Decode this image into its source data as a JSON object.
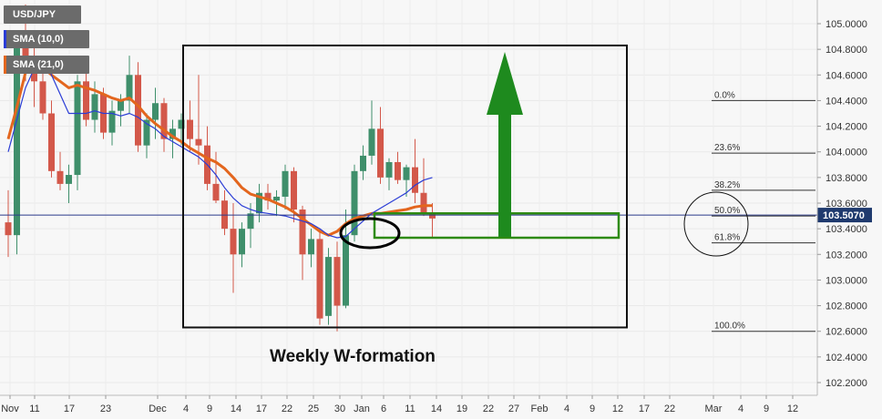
{
  "legend": {
    "symbol": "USD/JPY",
    "sma_fast": "SMA (10,0)",
    "sma_slow": "SMA (21,0)"
  },
  "colors": {
    "bull": "#3f8f6b",
    "bear": "#d3584a",
    "sma_fast": "#2b3dd6",
    "sma_slow": "#e3661e",
    "price_line": "#2b3a8a",
    "price_badge": "#1f3a6e",
    "range_box": "#111111",
    "zone": "#2e8b12",
    "arrow": "#1e8a1e"
  },
  "chart_data": {
    "type": "candlestick",
    "y_ticks": [
      "105.0000",
      "104.8000",
      "104.6000",
      "104.4000",
      "104.2000",
      "104.0000",
      "103.8000",
      "103.6000",
      "103.4000",
      "103.2000",
      "103.0000",
      "102.8000",
      "102.6000",
      "102.4000",
      "102.2000"
    ],
    "ylim": [
      102.08,
      105.12
    ],
    "x_ticks": [
      "Nov",
      "11",
      "17",
      "23",
      "Dec",
      "4",
      "9",
      "14",
      "17",
      "22",
      "25",
      "30",
      "Jan",
      "6",
      "11",
      "14",
      "19",
      "22",
      "27",
      "Feb",
      "4",
      "9",
      "12",
      "17",
      "22",
      "Mar",
      "4",
      "9",
      "12"
    ],
    "current_price": "103.5070",
    "candles": [
      [
        103.45,
        103.7,
        103.18,
        103.35
      ],
      [
        103.35,
        104.95,
        103.2,
        104.9
      ],
      [
        104.9,
        105.15,
        104.55,
        104.75
      ],
      [
        104.75,
        104.95,
        104.35,
        104.55
      ],
      [
        104.55,
        104.7,
        104.25,
        104.3
      ],
      [
        104.3,
        104.4,
        103.8,
        103.85
      ],
      [
        103.85,
        104.0,
        103.7,
        103.75
      ],
      [
        103.75,
        103.9,
        103.6,
        103.82
      ],
      [
        103.82,
        104.6,
        103.7,
        104.55
      ],
      [
        104.55,
        104.65,
        104.2,
        104.25
      ],
      [
        104.25,
        104.55,
        104.15,
        104.45
      ],
      [
        104.45,
        104.5,
        104.1,
        104.15
      ],
      [
        104.15,
        104.4,
        104.05,
        104.32
      ],
      [
        104.32,
        104.45,
        104.2,
        104.4
      ],
      [
        104.4,
        104.75,
        104.3,
        104.6
      ],
      [
        104.6,
        104.7,
        104.0,
        104.05
      ],
      [
        104.05,
        104.3,
        103.95,
        104.25
      ],
      [
        104.25,
        104.5,
        104.1,
        104.38
      ],
      [
        104.38,
        104.42,
        104.0,
        104.1
      ],
      [
        104.1,
        104.25,
        103.95,
        104.18
      ],
      [
        104.18,
        104.3,
        104.05,
        104.25
      ],
      [
        104.25,
        104.4,
        104.0,
        104.1
      ],
      [
        104.1,
        104.6,
        103.9,
        104.05
      ],
      [
        104.05,
        104.2,
        103.7,
        103.75
      ],
      [
        103.75,
        104.0,
        103.6,
        103.62
      ],
      [
        103.62,
        103.7,
        103.35,
        103.4
      ],
      [
        103.4,
        103.6,
        102.9,
        103.2
      ],
      [
        103.2,
        103.45,
        103.1,
        103.4
      ],
      [
        103.4,
        103.6,
        103.25,
        103.52
      ],
      [
        103.52,
        103.75,
        103.45,
        103.68
      ],
      [
        103.68,
        103.75,
        103.55,
        103.62
      ],
      [
        103.62,
        103.7,
        103.5,
        103.65
      ],
      [
        103.65,
        103.9,
        103.55,
        103.85
      ],
      [
        103.85,
        103.88,
        103.45,
        103.55
      ],
      [
        103.55,
        103.58,
        103.0,
        103.2
      ],
      [
        103.2,
        103.4,
        103.1,
        103.32
      ],
      [
        103.32,
        103.4,
        102.65,
        102.7
      ],
      [
        102.72,
        103.25,
        102.65,
        103.18
      ],
      [
        103.18,
        103.3,
        102.6,
        102.8
      ],
      [
        102.8,
        103.55,
        102.78,
        103.35
      ],
      [
        103.35,
        103.9,
        103.3,
        103.85
      ],
      [
        103.85,
        104.05,
        103.78,
        103.97
      ],
      [
        103.97,
        104.4,
        103.9,
        104.18
      ],
      [
        104.18,
        104.35,
        103.75,
        103.8
      ],
      [
        103.8,
        103.95,
        103.7,
        103.92
      ],
      [
        103.92,
        104.0,
        103.75,
        103.78
      ],
      [
        103.78,
        103.9,
        103.65,
        103.88
      ],
      [
        103.88,
        104.1,
        103.6,
        103.68
      ],
      [
        103.68,
        103.95,
        103.5,
        103.52
      ],
      [
        103.52,
        103.6,
        103.33,
        103.48
      ]
    ],
    "sma_fast_values": [
      104.0,
      104.25,
      104.5,
      104.65,
      104.72,
      104.6,
      104.45,
      104.3,
      104.3,
      104.3,
      104.32,
      104.3,
      104.3,
      104.28,
      104.3,
      104.27,
      104.22,
      104.18,
      104.12,
      104.08,
      104.04,
      104.0,
      103.96,
      103.9,
      103.82,
      103.72,
      103.64,
      103.58,
      103.55,
      103.53,
      103.52,
      103.51,
      103.5,
      103.48,
      103.46,
      103.44,
      103.4,
      103.35,
      103.33,
      103.34,
      103.4,
      103.46,
      103.52,
      103.56,
      103.6,
      103.64,
      103.68,
      103.74,
      103.78,
      103.8
    ],
    "sma_slow_values": [
      104.1,
      104.35,
      104.62,
      104.7,
      104.66,
      104.6,
      104.55,
      104.5,
      104.52,
      104.5,
      104.48,
      104.45,
      104.42,
      104.4,
      104.42,
      104.36,
      104.28,
      104.22,
      104.17,
      104.12,
      104.08,
      104.03,
      103.99,
      103.95,
      103.92,
      103.87,
      103.8,
      103.72,
      103.67,
      103.65,
      103.63,
      103.6,
      103.57,
      103.53,
      103.48,
      103.43,
      103.38,
      103.35,
      103.38,
      103.44,
      103.48,
      103.5,
      103.52,
      103.52,
      103.53,
      103.54,
      103.55,
      103.57,
      103.58,
      103.58
    ],
    "fibonacci": [
      {
        "label": "0.0%",
        "value": 104.4
      },
      {
        "label": "23.6%",
        "value": 103.99
      },
      {
        "label": "38.2%",
        "value": 103.7
      },
      {
        "label": "50.0%",
        "value": 103.5
      },
      {
        "label": "61.8%",
        "value": 103.29
      },
      {
        "label": "100.0%",
        "value": 102.6
      }
    ],
    "annotations": {
      "title": "Weekly W-formation",
      "range_box": [
        102.63,
        104.83
      ],
      "support_zone": [
        103.33,
        103.52
      ],
      "upper_target": 104.78
    }
  }
}
